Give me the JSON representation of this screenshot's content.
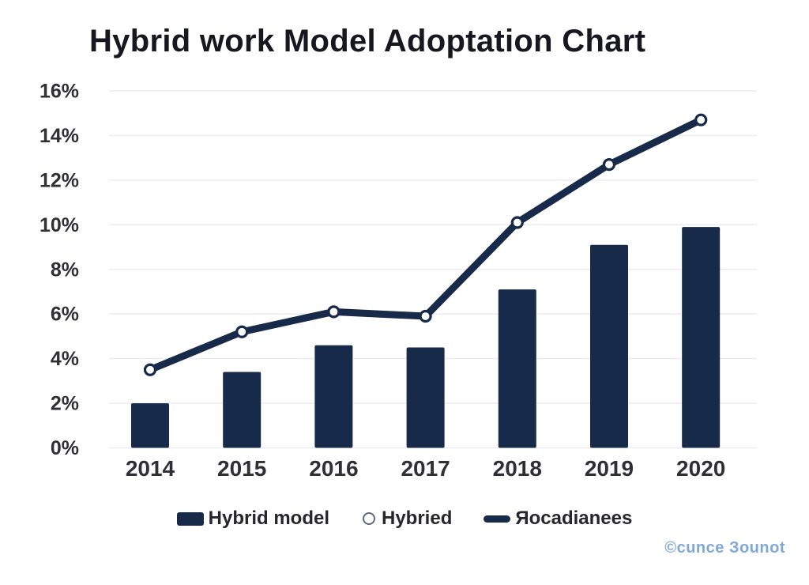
{
  "title": "Hybrid work Model Adoptation Chart",
  "watermark": "©cunce Зounot",
  "colors": {
    "bar": "#172a4a",
    "line": "#172a4a",
    "marker_fill": "#ffffff",
    "grid": "#ebedf0",
    "axis_text": "#2f2f36",
    "title_text": "#17171f",
    "legend_text": "#26262b",
    "legend_circle": "#5c6b7d",
    "watermark_text": "#7fa8d9"
  },
  "chart_data": {
    "type": "combo-bar-line",
    "title": "Hybrid work Model Adoptation Chart",
    "categories": [
      "2014",
      "2015",
      "2016",
      "2017",
      "2018",
      "2019",
      "2020"
    ],
    "series": [
      {
        "name": "Hybrid model",
        "type": "bar",
        "values": [
          2.0,
          3.4,
          4.6,
          4.5,
          7.1,
          9.1,
          9.9
        ]
      },
      {
        "name": "Hybried",
        "type": "line",
        "values": [
          3.5,
          5.2,
          6.1,
          5.9,
          10.1,
          12.7,
          14.7
        ]
      }
    ],
    "xlabel": "",
    "ylabel": "",
    "ylim": [
      0,
      16
    ],
    "ytick_step": 2,
    "ytick_labels": [
      "0%",
      "2%",
      "4%",
      "6%",
      "8%",
      "10%",
      "12%",
      "14%",
      "16%"
    ],
    "grid": "horizontal",
    "legend_position": "bottom",
    "legend": [
      {
        "marker": "rect",
        "label": "Hybrid model"
      },
      {
        "marker": "circle",
        "label": "Hybried"
      },
      {
        "marker": "line",
        "label": "Яocadianees"
      }
    ]
  }
}
